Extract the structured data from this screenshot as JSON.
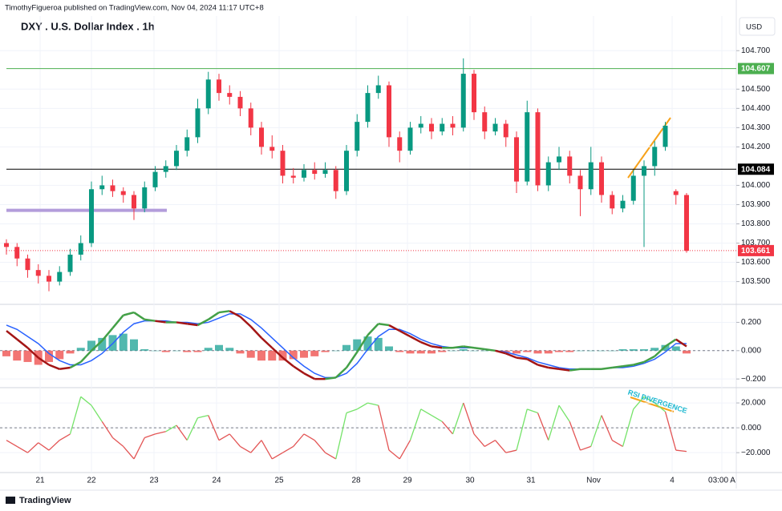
{
  "header": {
    "publisher": "TimothyFigueroa published on TradingView.com, Nov 04, 2024 11:17 UTC+8",
    "title": "DXY . U.S. Dollar Index . 1h",
    "currency": "USD"
  },
  "footer": {
    "brand": "TradingView"
  },
  "chart_data": [
    {
      "type": "candlestick",
      "up_color": "#089981",
      "down_color": "#f23645",
      "candles": [
        [
          103.7,
          103.72,
          103.64,
          103.68
        ],
        [
          103.68,
          103.7,
          103.58,
          103.62
        ],
        [
          103.62,
          103.64,
          103.52,
          103.56
        ],
        [
          103.56,
          103.59,
          103.49,
          103.53
        ],
        [
          103.53,
          103.56,
          103.45,
          103.5
        ],
        [
          103.5,
          103.58,
          103.48,
          103.55
        ],
        [
          103.55,
          103.67,
          103.53,
          103.64
        ],
        [
          103.64,
          103.74,
          103.61,
          103.7
        ],
        [
          103.7,
          104.02,
          103.68,
          103.98
        ],
        [
          103.98,
          104.05,
          103.95,
          104.0
        ],
        [
          104.0,
          104.03,
          103.94,
          103.97
        ],
        [
          103.97,
          103.99,
          103.91,
          103.95
        ],
        [
          103.95,
          103.97,
          103.82,
          103.88
        ],
        [
          103.88,
          104.02,
          103.86,
          103.99
        ],
        [
          103.99,
          104.1,
          103.97,
          104.07
        ],
        [
          104.07,
          104.13,
          104.04,
          104.1
        ],
        [
          104.1,
          104.21,
          104.08,
          104.18
        ],
        [
          104.18,
          104.29,
          104.15,
          104.25
        ],
        [
          104.25,
          104.45,
          104.22,
          104.4
        ],
        [
          104.4,
          104.59,
          104.37,
          104.55
        ],
        [
          104.55,
          104.58,
          104.44,
          104.48
        ],
        [
          104.48,
          104.52,
          104.42,
          104.46
        ],
        [
          104.46,
          104.49,
          104.36,
          104.4
        ],
        [
          104.4,
          104.43,
          104.26,
          104.3
        ],
        [
          104.3,
          104.33,
          104.16,
          104.2
        ],
        [
          104.2,
          104.26,
          104.14,
          104.18
        ],
        [
          104.18,
          104.21,
          104.01,
          104.05
        ],
        [
          104.05,
          104.09,
          104.01,
          104.04
        ],
        [
          104.04,
          104.11,
          104.02,
          104.08
        ],
        [
          104.08,
          104.12,
          104.03,
          104.06
        ],
        [
          104.06,
          104.12,
          104.04,
          104.08
        ],
        [
          104.08,
          104.1,
          103.93,
          103.97
        ],
        [
          103.97,
          104.21,
          103.95,
          104.18
        ],
        [
          104.18,
          104.37,
          104.15,
          104.33
        ],
        [
          104.33,
          104.52,
          104.3,
          104.48
        ],
        [
          104.48,
          104.57,
          104.45,
          104.52
        ],
        [
          104.52,
          104.54,
          104.2,
          104.25
        ],
        [
          104.25,
          104.28,
          104.12,
          104.18
        ],
        [
          104.18,
          104.33,
          104.16,
          104.3
        ],
        [
          104.3,
          104.36,
          104.27,
          104.32
        ],
        [
          104.32,
          104.35,
          104.24,
          104.28
        ],
        [
          104.28,
          104.35,
          104.26,
          104.32
        ],
        [
          104.32,
          104.36,
          104.26,
          104.3
        ],
        [
          104.3,
          104.66,
          104.28,
          104.58
        ],
        [
          104.58,
          104.6,
          104.34,
          104.38
        ],
        [
          104.38,
          104.41,
          104.24,
          104.28
        ],
        [
          104.28,
          104.35,
          104.26,
          104.32
        ],
        [
          104.32,
          104.34,
          104.2,
          104.25
        ],
        [
          104.25,
          104.28,
          103.96,
          104.02
        ],
        [
          104.02,
          104.44,
          104.0,
          104.38
        ],
        [
          104.38,
          104.4,
          103.97,
          104.0
        ],
        [
          104.0,
          104.15,
          103.97,
          104.12
        ],
        [
          104.12,
          104.2,
          104.08,
          104.15
        ],
        [
          104.15,
          104.18,
          104.01,
          104.05
        ],
        [
          104.05,
          104.08,
          103.84,
          103.98
        ],
        [
          103.98,
          104.2,
          103.95,
          104.12
        ],
        [
          104.12,
          104.15,
          103.91,
          103.95
        ],
        [
          103.95,
          103.97,
          103.85,
          103.88
        ],
        [
          103.88,
          103.95,
          103.86,
          103.92
        ],
        [
          103.92,
          104.08,
          103.9,
          104.05
        ],
        [
          104.05,
          104.13,
          103.68,
          104.1
        ],
        [
          104.1,
          104.23,
          104.05,
          104.2
        ],
        [
          104.2,
          104.33,
          104.18,
          104.31
        ],
        [
          103.97,
          103.98,
          103.9,
          103.95
        ],
        [
          103.95,
          103.96,
          103.65,
          103.66
        ]
      ],
      "ylim": [
        103.39,
        104.88
      ],
      "yticks": [
        {
          "value": 103.5,
          "label": "103.500"
        },
        {
          "value": 103.6,
          "label": "103.600"
        },
        {
          "value": 103.7,
          "label": "103.700"
        },
        {
          "value": 103.8,
          "label": "103.800"
        },
        {
          "value": 103.9,
          "label": "103.900"
        },
        {
          "value": 104.0,
          "label": "104.000"
        },
        {
          "value": 104.2,
          "label": "104.200"
        },
        {
          "value": 104.3,
          "label": "104.300"
        },
        {
          "value": 104.4,
          "label": "104.400"
        },
        {
          "value": 104.5,
          "label": "104.500"
        },
        {
          "value": 104.7,
          "label": "104.700"
        }
      ],
      "horizontal_lines": [
        {
          "value": 104.607,
          "color": "#4caf50",
          "labeled": true,
          "style": "solid"
        },
        {
          "value": 104.084,
          "color": "#000000",
          "labeled": true,
          "style": "solid"
        },
        {
          "value": 103.661,
          "color": "#f23645",
          "labeled": true,
          "style": "dotted"
        },
        {
          "value": 103.87,
          "color": "#b39ddb",
          "labeled": false,
          "style": "thick"
        }
      ],
      "x_labels": [
        "21",
        "22",
        "23",
        "24",
        "25",
        "28",
        "29",
        "30",
        "31",
        "Nov",
        "4",
        "03:00 A"
      ]
    },
    {
      "type": "macd",
      "macd_up_color": "#43a047",
      "macd_down_color": "#a31515",
      "signal_color": "#2962ff",
      "hist_up_color": "#26a69a",
      "hist_down_color": "#ef5350",
      "macd": [
        0.14,
        0.08,
        0.02,
        -0.05,
        -0.1,
        -0.13,
        -0.12,
        -0.08,
        0.0,
        0.07,
        0.16,
        0.25,
        0.27,
        0.22,
        0.21,
        0.2,
        0.2,
        0.19,
        0.18,
        0.22,
        0.27,
        0.28,
        0.24,
        0.17,
        0.09,
        0.02,
        -0.05,
        -0.11,
        -0.16,
        -0.2,
        -0.2,
        -0.19,
        -0.12,
        -0.01,
        0.11,
        0.19,
        0.18,
        0.14,
        0.1,
        0.06,
        0.03,
        0.02,
        0.02,
        0.03,
        0.02,
        0.01,
        0.0,
        -0.02,
        -0.05,
        -0.06,
        -0.1,
        -0.12,
        -0.13,
        -0.14,
        -0.13,
        -0.13,
        -0.13,
        -0.12,
        -0.11,
        -0.1,
        -0.08,
        -0.04,
        0.03,
        0.08,
        0.03
      ],
      "signal": [
        0.18,
        0.15,
        0.1,
        0.05,
        -0.02,
        -0.07,
        -0.1,
        -0.1,
        -0.07,
        -0.02,
        0.05,
        0.13,
        0.19,
        0.21,
        0.21,
        0.21,
        0.2,
        0.2,
        0.19,
        0.2,
        0.23,
        0.26,
        0.26,
        0.22,
        0.16,
        0.09,
        0.02,
        -0.05,
        -0.11,
        -0.16,
        -0.19,
        -0.19,
        -0.16,
        -0.09,
        0.01,
        0.1,
        0.15,
        0.15,
        0.12,
        0.08,
        0.05,
        0.03,
        0.02,
        0.02,
        0.02,
        0.01,
        0.0,
        -0.01,
        -0.03,
        -0.05,
        -0.08,
        -0.1,
        -0.12,
        -0.13,
        -0.13,
        -0.13,
        -0.13,
        -0.12,
        -0.12,
        -0.11,
        -0.09,
        -0.06,
        -0.01,
        0.05,
        0.05
      ],
      "histogram": [
        -0.04,
        -0.07,
        -0.08,
        -0.1,
        -0.08,
        -0.06,
        -0.02,
        0.02,
        0.07,
        0.09,
        0.11,
        0.12,
        0.08,
        0.01,
        0.0,
        -0.01,
        0.0,
        -0.01,
        -0.01,
        0.02,
        0.04,
        0.02,
        -0.02,
        -0.05,
        -0.07,
        -0.07,
        -0.07,
        -0.06,
        -0.05,
        -0.04,
        -0.01,
        0.0,
        0.04,
        0.08,
        0.1,
        0.09,
        0.03,
        -0.01,
        -0.02,
        -0.02,
        -0.02,
        -0.01,
        0.0,
        0.01,
        0.0,
        0.0,
        0.0,
        -0.01,
        -0.02,
        -0.01,
        -0.02,
        -0.02,
        -0.01,
        -0.01,
        0.0,
        0.0,
        0.0,
        0.0,
        0.01,
        0.01,
        0.01,
        0.02,
        0.04,
        0.03,
        -0.02
      ],
      "ylim": [
        -0.25,
        0.31
      ],
      "yticks": [
        {
          "value": 0.2,
          "label": "0.200"
        },
        {
          "value": 0,
          "label": "0.000"
        },
        {
          "value": -0.2,
          "label": "−0.200"
        }
      ]
    },
    {
      "type": "oscillator",
      "up_color": "#76e36a",
      "down_color": "#e35555",
      "values": [
        -10,
        -15,
        -20,
        -12,
        -18,
        -10,
        -5,
        25,
        18,
        5,
        -8,
        -15,
        -25,
        -8,
        -5,
        -3,
        2,
        -10,
        8,
        10,
        -10,
        -5,
        -15,
        -20,
        -10,
        -25,
        -20,
        -15,
        -5,
        -10,
        -20,
        -25,
        12,
        15,
        20,
        18,
        -18,
        -25,
        -10,
        15,
        10,
        5,
        -5,
        20,
        -5,
        -15,
        -10,
        -20,
        -18,
        15,
        12,
        -10,
        18,
        5,
        -18,
        -15,
        10,
        -10,
        -15,
        15,
        25,
        20,
        13,
        -18,
        -19
      ],
      "ylim": [
        -36,
        31
      ],
      "yticks": [
        {
          "value": 20,
          "label": "20.000"
        },
        {
          "value": 0,
          "label": "0.000"
        },
        {
          "value": -20,
          "label": "−20.000"
        }
      ],
      "annotation": "RSI DIVERGENCE"
    }
  ]
}
